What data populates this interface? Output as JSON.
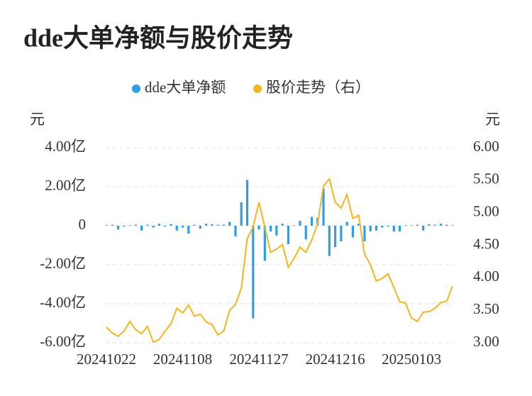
{
  "chart_data": {
    "type": "bar-line",
    "title": "dde大单净额与股价走势",
    "y_axis_label": "元",
    "y2_axis_label": "元",
    "categories": [
      "20241022",
      null,
      null,
      null,
      null,
      null,
      null,
      null,
      null,
      null,
      null,
      null,
      null,
      "20241108",
      null,
      null,
      null,
      null,
      null,
      null,
      null,
      null,
      null,
      null,
      null,
      null,
      "20241127",
      null,
      null,
      null,
      null,
      null,
      null,
      null,
      null,
      null,
      null,
      null,
      null,
      "20241216",
      null,
      null,
      null,
      null,
      null,
      null,
      null,
      null,
      null,
      null,
      null,
      null,
      "20250103",
      null,
      null,
      null,
      null,
      null,
      null,
      null
    ],
    "series": [
      {
        "name": "dde大单净额",
        "type": "bar",
        "color": "#2e9ee8",
        "values": [
          0.03,
          0.05,
          -0.2,
          -0.05,
          0.02,
          0.05,
          -0.25,
          0.05,
          -0.1,
          0.1,
          -0.05,
          0.08,
          -0.25,
          -0.1,
          -0.4,
          0.05,
          -0.15,
          0.1,
          0.08,
          0.05,
          0.05,
          0.2,
          -0.55,
          1.2,
          2.35,
          -4.75,
          -0.2,
          -1.8,
          -0.3,
          -0.5,
          0.1,
          -0.95,
          0.02,
          0.25,
          -0.7,
          0.45,
          0.4,
          1.9,
          -1.55,
          -1.1,
          -0.8,
          0.2,
          -0.6,
          0.1,
          -0.8,
          -0.3,
          -0.25,
          -0.1,
          -0.05,
          -0.3,
          -0.3,
          0.02,
          0.03,
          0.05,
          -0.25,
          0.08,
          0.05,
          0.1,
          0.05,
          0.03
        ]
      },
      {
        "name": "股价走势（右）",
        "type": "line",
        "axis": "y2",
        "color": "#f5b51c",
        "values": [
          3.24,
          3.15,
          3.1,
          3.18,
          3.33,
          3.2,
          3.14,
          3.25,
          3.01,
          3.05,
          3.18,
          3.29,
          3.53,
          3.46,
          3.58,
          3.41,
          3.44,
          3.32,
          3.28,
          3.12,
          3.18,
          3.5,
          3.59,
          3.84,
          4.6,
          4.78,
          5.16,
          4.78,
          4.39,
          4.44,
          4.51,
          4.16,
          4.3,
          4.47,
          4.39,
          4.58,
          4.83,
          5.41,
          5.52,
          5.16,
          5.07,
          5.28,
          4.91,
          4.96,
          4.36,
          4.2,
          3.95,
          3.99,
          4.06,
          3.85,
          3.63,
          3.61,
          3.38,
          3.33,
          3.47,
          3.48,
          3.53,
          3.62,
          3.64,
          3.87
        ]
      }
    ],
    "ylim": [
      -6,
      4
    ],
    "yticks": [
      {
        "value": 4,
        "label": "4.00亿"
      },
      {
        "value": 2,
        "label": "2.00亿"
      },
      0,
      {
        "value": -2,
        "label": "-2.00亿"
      },
      {
        "value": -4,
        "label": "-4.00亿"
      },
      {
        "value": -6,
        "label": "-6.00亿"
      }
    ],
    "y2lim": [
      3,
      6
    ],
    "y2ticks": [
      {
        "value": 6,
        "label": "6.00"
      },
      {
        "value": 5.5,
        "label": "5.50"
      },
      {
        "value": 5,
        "label": "5.00"
      },
      {
        "value": 4.5,
        "label": "4.50"
      },
      {
        "value": 4,
        "label": "4.00"
      },
      {
        "value": 3.5,
        "label": "3.50"
      },
      {
        "value": 3,
        "label": "3.00"
      }
    ],
    "grid": true,
    "legend": "top"
  }
}
